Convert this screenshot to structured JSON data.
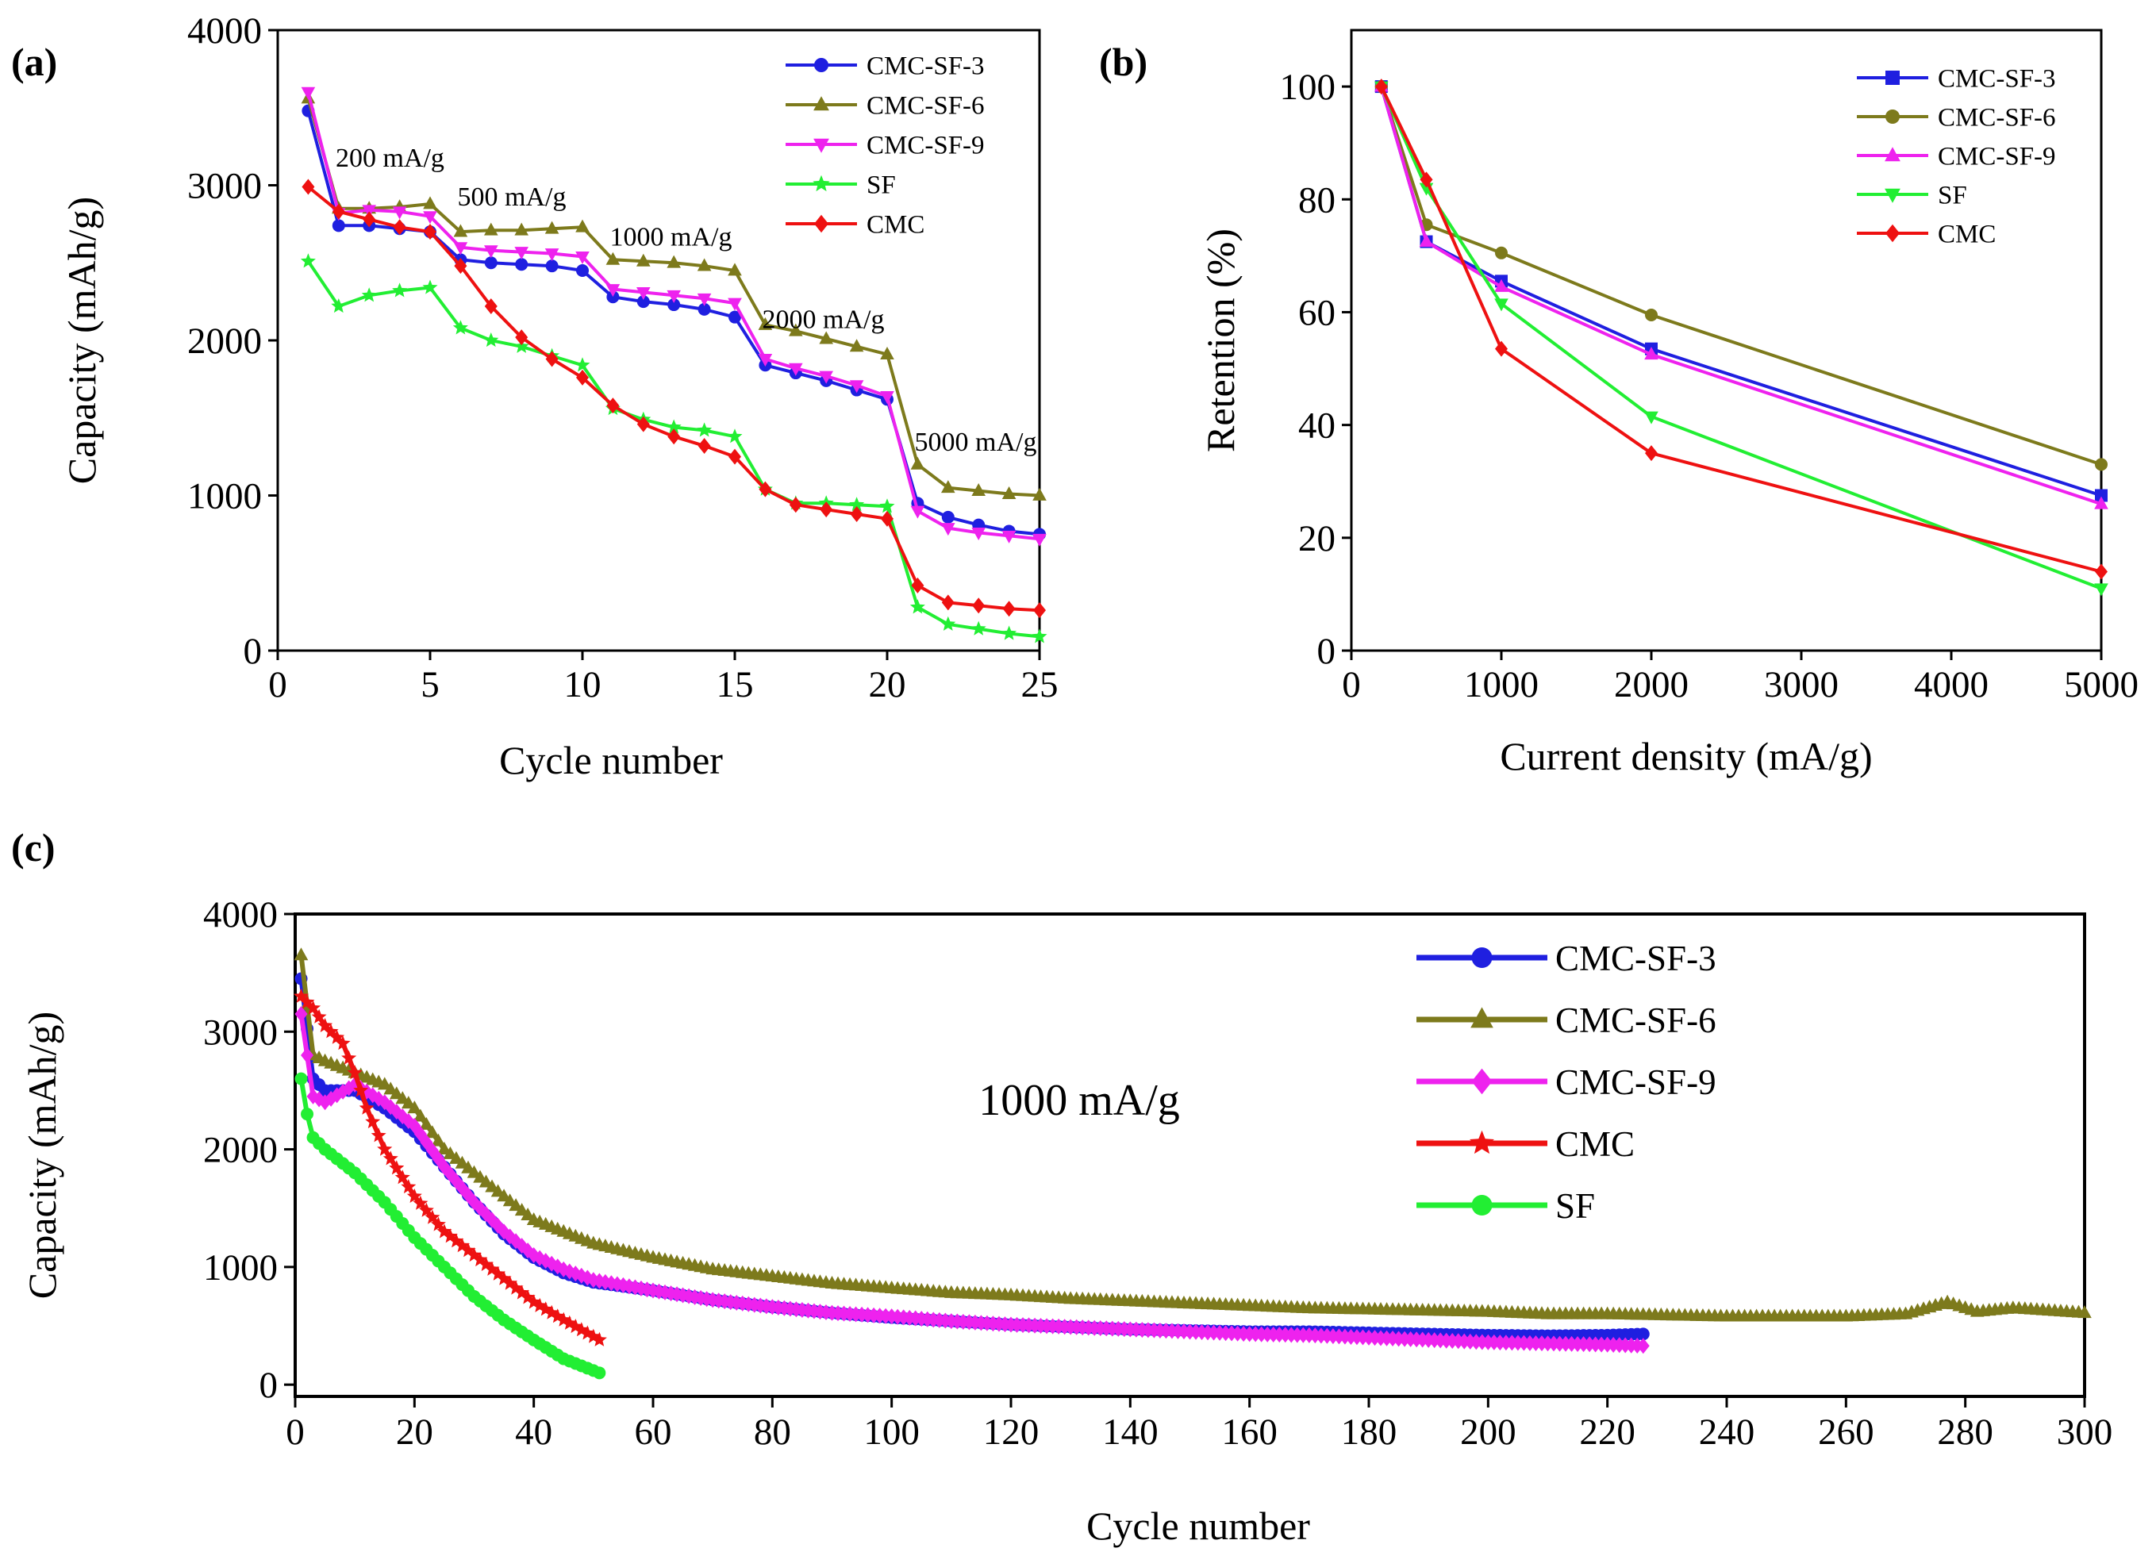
{
  "chart_data": [
    {
      "panel": "(a)",
      "type": "line",
      "xlabel": "Cycle number",
      "ylabel": "Capacity (mAh/g)",
      "xlim": [
        0,
        25
      ],
      "ylim": [
        0,
        4000
      ],
      "xticks": [
        0,
        5,
        10,
        15,
        20,
        25
      ],
      "yticks": [
        0,
        1000,
        2000,
        3000,
        4000
      ],
      "x": [
        1,
        2,
        3,
        4,
        5,
        6,
        7,
        8,
        9,
        10,
        11,
        12,
        13,
        14,
        15,
        16,
        17,
        18,
        19,
        20,
        21,
        22,
        23,
        24,
        25
      ],
      "series": [
        {
          "name": "CMC-SF-3",
          "color": "#1f1fe0",
          "marker": "circle",
          "values": [
            3480,
            2740,
            2740,
            2720,
            2700,
            2520,
            2500,
            2490,
            2480,
            2450,
            2280,
            2250,
            2230,
            2200,
            2150,
            1840,
            1790,
            1740,
            1680,
            1620,
            950,
            860,
            810,
            770,
            750
          ]
        },
        {
          "name": "CMC-SF-6",
          "color": "#7d7a1c",
          "marker": "triangle-up",
          "values": [
            3560,
            2850,
            2850,
            2860,
            2880,
            2700,
            2710,
            2710,
            2720,
            2730,
            2520,
            2510,
            2500,
            2480,
            2450,
            2100,
            2060,
            2010,
            1960,
            1910,
            1200,
            1050,
            1030,
            1010,
            1000
          ]
        },
        {
          "name": "CMC-SF-9",
          "color": "#ee22ee",
          "marker": "triangle-down",
          "values": [
            3600,
            2820,
            2840,
            2830,
            2800,
            2600,
            2580,
            2570,
            2560,
            2540,
            2330,
            2310,
            2290,
            2270,
            2240,
            1880,
            1820,
            1770,
            1710,
            1640,
            900,
            790,
            760,
            740,
            720
          ]
        },
        {
          "name": "SF",
          "color": "#22ee33",
          "marker": "star",
          "values": [
            2510,
            2220,
            2290,
            2320,
            2340,
            2080,
            2000,
            1960,
            1900,
            1840,
            1560,
            1490,
            1440,
            1420,
            1380,
            1040,
            950,
            950,
            940,
            930,
            280,
            170,
            140,
            110,
            90
          ]
        },
        {
          "name": "CMC",
          "color": "#ee1111",
          "marker": "diamond",
          "values": [
            2990,
            2830,
            2780,
            2730,
            2700,
            2480,
            2220,
            2020,
            1880,
            1760,
            1580,
            1460,
            1380,
            1320,
            1250,
            1040,
            940,
            910,
            880,
            850,
            420,
            310,
            290,
            270,
            260
          ]
        }
      ],
      "annotations": [
        {
          "text": "200 mA/g",
          "x": 1.9,
          "y": 3120
        },
        {
          "text": "500 mA/g",
          "x": 5.9,
          "y": 2870
        },
        {
          "text": "1000 mA/g",
          "x": 10.9,
          "y": 2610
        },
        {
          "text": "2000 mA/g",
          "x": 15.9,
          "y": 2080
        },
        {
          "text": "5000 mA/g",
          "x": 20.9,
          "y": 1290
        }
      ]
    },
    {
      "panel": "(b)",
      "type": "line",
      "xlabel": "Current density (mA/g)",
      "ylabel": "Retention (%)",
      "xlim": [
        0,
        5000
      ],
      "ylim": [
        0,
        110
      ],
      "xticks": [
        0,
        1000,
        2000,
        3000,
        4000,
        5000
      ],
      "yticks": [
        0,
        20,
        40,
        60,
        80,
        100
      ],
      "x": [
        200,
        500,
        1000,
        2000,
        5000
      ],
      "series": [
        {
          "name": "CMC-SF-3",
          "color": "#1f1fe0",
          "marker": "square",
          "values": [
            100,
            72.5,
            65.5,
            53.5,
            27.5
          ]
        },
        {
          "name": "CMC-SF-6",
          "color": "#7d7a1c",
          "marker": "circle",
          "values": [
            100,
            75.5,
            70.5,
            59.5,
            33
          ]
        },
        {
          "name": "CMC-SF-9",
          "color": "#ee22ee",
          "marker": "triangle-up",
          "values": [
            100,
            72.5,
            64.5,
            52.5,
            26
          ]
        },
        {
          "name": "SF",
          "color": "#22ee33",
          "marker": "triangle-down",
          "values": [
            100,
            82,
            61.5,
            41.5,
            11
          ]
        },
        {
          "name": "CMC",
          "color": "#ee1111",
          "marker": "diamond",
          "values": [
            100,
            83.5,
            53.5,
            35,
            14
          ]
        }
      ]
    },
    {
      "panel": "(c)",
      "type": "line",
      "xlabel": "Cycle number",
      "ylabel": "Capacity (mAh/g)",
      "xlim": [
        0,
        300
      ],
      "ylim": [
        -100,
        4000
      ],
      "xticks": [
        0,
        20,
        40,
        60,
        80,
        100,
        120,
        140,
        160,
        180,
        200,
        220,
        240,
        260,
        280,
        300
      ],
      "yticks": [
        0,
        1000,
        2000,
        3000,
        4000
      ],
      "annotation": "1000 mA/g",
      "series": [
        {
          "name": "CMC-SF-3",
          "color": "#1f1fe0",
          "marker": "circle",
          "points": [
            [
              1,
              3450
            ],
            [
              3,
              2600
            ],
            [
              5,
              2500
            ],
            [
              10,
              2500
            ],
            [
              15,
              2350
            ],
            [
              20,
              2150
            ],
            [
              25,
              1850
            ],
            [
              30,
              1550
            ],
            [
              35,
              1280
            ],
            [
              40,
              1080
            ],
            [
              45,
              950
            ],
            [
              50,
              870
            ],
            [
              60,
              800
            ],
            [
              70,
              720
            ],
            [
              80,
              660
            ],
            [
              90,
              610
            ],
            [
              100,
              570
            ],
            [
              110,
              540
            ],
            [
              120,
              510
            ],
            [
              130,
              490
            ],
            [
              140,
              470
            ],
            [
              150,
              460
            ],
            [
              160,
              450
            ],
            [
              170,
              450
            ],
            [
              180,
              440
            ],
            [
              190,
              430
            ],
            [
              200,
              420
            ],
            [
              210,
              415
            ],
            [
              220,
              420
            ],
            [
              226,
              430
            ]
          ]
        },
        {
          "name": "CMC-SF-6",
          "color": "#7d7a1c",
          "marker": "triangle-up",
          "points": [
            [
              1,
              3650
            ],
            [
              3,
              2800
            ],
            [
              5,
              2750
            ],
            [
              10,
              2650
            ],
            [
              15,
              2550
            ],
            [
              20,
              2350
            ],
            [
              25,
              2000
            ],
            [
              30,
              1800
            ],
            [
              35,
              1600
            ],
            [
              40,
              1400
            ],
            [
              45,
              1300
            ],
            [
              50,
              1200
            ],
            [
              60,
              1080
            ],
            [
              70,
              980
            ],
            [
              80,
              920
            ],
            [
              90,
              860
            ],
            [
              100,
              820
            ],
            [
              110,
              780
            ],
            [
              120,
              760
            ],
            [
              130,
              730
            ],
            [
              140,
              710
            ],
            [
              150,
              690
            ],
            [
              160,
              670
            ],
            [
              170,
              650
            ],
            [
              180,
              640
            ],
            [
              190,
              630
            ],
            [
              200,
              620
            ],
            [
              210,
              600
            ],
            [
              220,
              600
            ],
            [
              230,
              590
            ],
            [
              240,
              580
            ],
            [
              250,
              580
            ],
            [
              260,
              580
            ],
            [
              270,
              600
            ],
            [
              277,
              700
            ],
            [
              282,
              620
            ],
            [
              288,
              650
            ],
            [
              300,
              610
            ]
          ]
        },
        {
          "name": "CMC-SF-9",
          "color": "#ee22ee",
          "marker": "diamond",
          "points": [
            [
              1,
              3150
            ],
            [
              3,
              2450
            ],
            [
              5,
              2400
            ],
            [
              10,
              2550
            ],
            [
              15,
              2400
            ],
            [
              20,
              2200
            ],
            [
              25,
              1850
            ],
            [
              30,
              1550
            ],
            [
              35,
              1300
            ],
            [
              40,
              1100
            ],
            [
              45,
              980
            ],
            [
              50,
              890
            ],
            [
              60,
              800
            ],
            [
              70,
              720
            ],
            [
              80,
              660
            ],
            [
              90,
              610
            ],
            [
              100,
              580
            ],
            [
              110,
              540
            ],
            [
              120,
              510
            ],
            [
              130,
              490
            ],
            [
              140,
              470
            ],
            [
              150,
              450
            ],
            [
              160,
              430
            ],
            [
              170,
              420
            ],
            [
              180,
              400
            ],
            [
              190,
              380
            ],
            [
              200,
              360
            ],
            [
              210,
              350
            ],
            [
              220,
              340
            ],
            [
              226,
              330
            ]
          ]
        },
        {
          "name": "CMC",
          "color": "#ee1111",
          "marker": "star",
          "points": [
            [
              1,
              3300
            ],
            [
              3,
              3200
            ],
            [
              5,
              3050
            ],
            [
              8,
              2900
            ],
            [
              10,
              2650
            ],
            [
              12,
              2350
            ],
            [
              15,
              2000
            ],
            [
              20,
              1600
            ],
            [
              25,
              1300
            ],
            [
              30,
              1100
            ],
            [
              35,
              900
            ],
            [
              40,
              700
            ],
            [
              45,
              550
            ],
            [
              51,
              380
            ]
          ]
        },
        {
          "name": "SF",
          "color": "#22ee33",
          "marker": "circle",
          "points": [
            [
              1,
              2600
            ],
            [
              2,
              2300
            ],
            [
              3,
              2100
            ],
            [
              5,
              2000
            ],
            [
              10,
              1800
            ],
            [
              15,
              1550
            ],
            [
              20,
              1250
            ],
            [
              25,
              1000
            ],
            [
              30,
              750
            ],
            [
              35,
              550
            ],
            [
              40,
              380
            ],
            [
              45,
              220
            ],
            [
              51,
              100
            ]
          ]
        }
      ]
    }
  ],
  "colors": {
    "axis": "#000000",
    "background": "#ffffff"
  }
}
